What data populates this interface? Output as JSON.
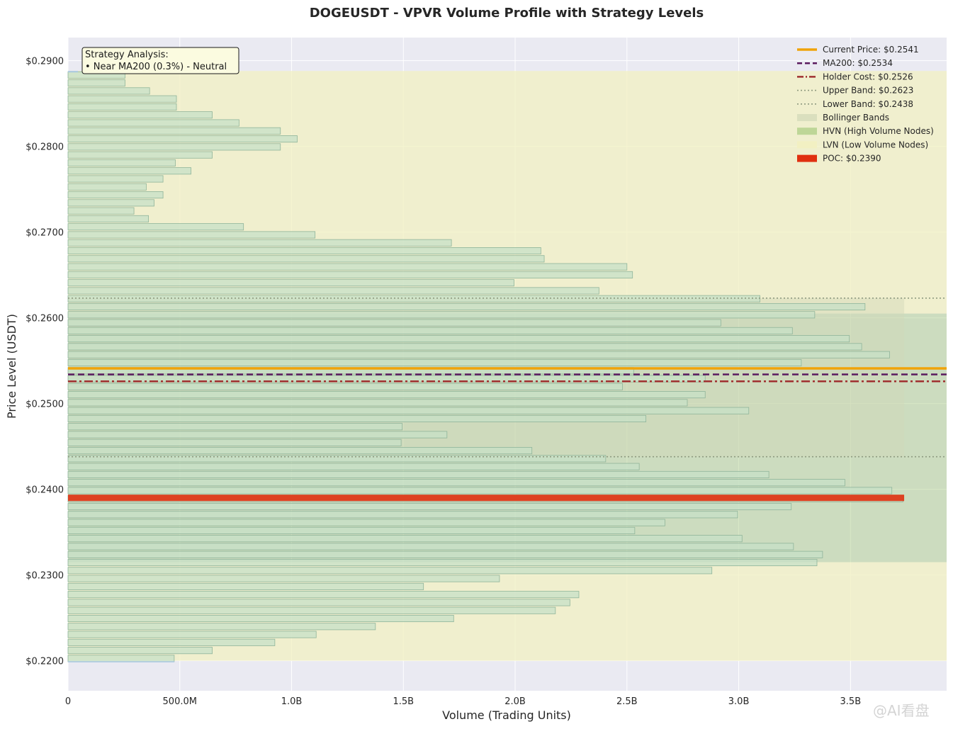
{
  "chart_data": {
    "type": "bar",
    "orientation": "horizontal",
    "title": "DOGEUSDT - VPVR Volume Profile with Strategy Levels",
    "xlabel": "Volume (Trading Units)",
    "ylabel": "Price Level (USDT)",
    "xlim": [
      0,
      3930000000
    ],
    "ylim": [
      0.2165,
      0.2927
    ],
    "x_ticks": [
      {
        "value": 0,
        "label": "0"
      },
      {
        "value": 500000000,
        "label": "500.0M"
      },
      {
        "value": 1000000000,
        "label": "1.0B"
      },
      {
        "value": 1500000000,
        "label": "1.5B"
      },
      {
        "value": 2000000000,
        "label": "2.0B"
      },
      {
        "value": 2500000000,
        "label": "2.5B"
      },
      {
        "value": 3000000000,
        "label": "3.0B"
      },
      {
        "value": 3500000000,
        "label": "3.5B"
      }
    ],
    "y_ticks": [
      {
        "value": 0.22,
        "label": "$0.2200"
      },
      {
        "value": 0.23,
        "label": "$0.2300"
      },
      {
        "value": 0.24,
        "label": "$0.2400"
      },
      {
        "value": 0.25,
        "label": "$0.2500"
      },
      {
        "value": 0.26,
        "label": "$0.2600"
      },
      {
        "value": 0.27,
        "label": "$0.2700"
      },
      {
        "value": 0.28,
        "label": "$0.2800"
      },
      {
        "value": 0.29,
        "label": "$0.2900"
      }
    ],
    "grid": true,
    "legend_position": "top-right",
    "bins": {
      "price_min": 0.2198,
      "price_max": 0.2888,
      "prices": [
        0.220126,
        0.221064,
        0.222002,
        0.222941,
        0.223879,
        0.224817,
        0.225755,
        0.226693,
        0.227632,
        0.22857,
        0.229508,
        0.230446,
        0.231384,
        0.232323,
        0.233261,
        0.234199,
        0.235137,
        0.236075,
        0.237014,
        0.237952,
        0.23889,
        0.239828,
        0.240766,
        0.241705,
        0.242643,
        0.243581,
        0.244519,
        0.245457,
        0.246396,
        0.247334,
        0.248272,
        0.24921,
        0.250148,
        0.251087,
        0.252025,
        0.252963,
        0.253901,
        0.254839,
        0.255778,
        0.256716,
        0.257654,
        0.258592,
        0.25953,
        0.260469,
        0.261407,
        0.262345,
        0.263283,
        0.264221,
        0.26516,
        0.266098,
        0.267036,
        0.267974,
        0.268912,
        0.269851,
        0.270789,
        0.271727,
        0.272665,
        0.273603,
        0.274542,
        0.27548,
        0.276418,
        0.277356,
        0.278294,
        0.279233,
        0.280171,
        0.281109,
        0.282047,
        0.282985,
        0.283924,
        0.284862,
        0.2858,
        0.286738,
        0.287676,
        0.288615
      ],
      "volumes": [
        475000000,
        645000000,
        925000000,
        1110000000,
        1375000000,
        1725000000,
        2180000000,
        2245000000,
        2285000000,
        1590000000,
        1930000000,
        2880000000,
        3350000000,
        3375000000,
        3245000000,
        3015000000,
        2535000000,
        2670000000,
        2995000000,
        3235000000,
        3735000000,
        3685000000,
        3475000000,
        3135000000,
        2555000000,
        2405000000,
        2075000000,
        1490000000,
        1695000000,
        1495000000,
        2585000000,
        3045000000,
        2770000000,
        2850000000,
        2480000000,
        2850000000,
        2530000000,
        3280000000,
        3675000000,
        3550000000,
        3495000000,
        3240000000,
        2920000000,
        3340000000,
        3565000000,
        3095000000,
        2375000000,
        1995000000,
        2525000000,
        2500000000,
        2130000000,
        2115000000,
        1715000000,
        1105000000,
        785000000,
        360000000,
        295000000,
        385000000,
        425000000,
        350000000,
        425000000,
        550000000,
        480000000,
        645000000,
        950000000,
        1025000000,
        950000000,
        765000000,
        645000000,
        485000000,
        485000000,
        365000000,
        255000000,
        255000000
      ]
    },
    "bollinger_bands": {
      "upper": 0.2623,
      "lower": 0.2438
    },
    "hvn_zone": [
      0.2315,
      0.2605
    ],
    "lvn_zones": [
      [
        0.22,
        0.2315
      ],
      [
        0.2605,
        0.2888
      ]
    ],
    "levels": {
      "current_price": 0.2541,
      "ma200": 0.2534,
      "holder_cost": 0.2526,
      "poc": 0.239
    },
    "legend": [
      {
        "key": "current",
        "label": "Current Price: $0.2541"
      },
      {
        "key": "ma200",
        "label": "MA200: $0.2534"
      },
      {
        "key": "holder",
        "label": "Holder Cost: $0.2526"
      },
      {
        "key": "upper",
        "label": "Upper Band: $0.2623"
      },
      {
        "key": "lower",
        "label": "Lower Band: $0.2438"
      },
      {
        "key": "bb",
        "label": "Bollinger Bands"
      },
      {
        "key": "hvn",
        "label": "HVN (High Volume Nodes)"
      },
      {
        "key": "lvn",
        "label": "LVN (Low Volume Nodes)"
      },
      {
        "key": "poc",
        "label": "POC: $0.2390"
      }
    ],
    "annotation": {
      "title": "Strategy Analysis:",
      "line1": "• Near MA200 (0.3%) - Neutral"
    },
    "colors": {
      "background": "#eaeaf2",
      "grid": "#ffffff",
      "bar_fill": "#c7e0c7",
      "bar_stroke": "#8fb49a",
      "bar_edge_blue": "#a8c8e0",
      "lvn": "#f2f0c2",
      "hvn": "#a8cc80",
      "bollinger": "#d0d8b8",
      "current_price": "#f0a30a",
      "ma200": "#5a1a5e",
      "holder_cost": "#a03030",
      "band_line": "#8e9a80",
      "poc": "#e03010",
      "annotation_fill": "#fbfbe0"
    }
  },
  "watermark": "@AI看盘"
}
